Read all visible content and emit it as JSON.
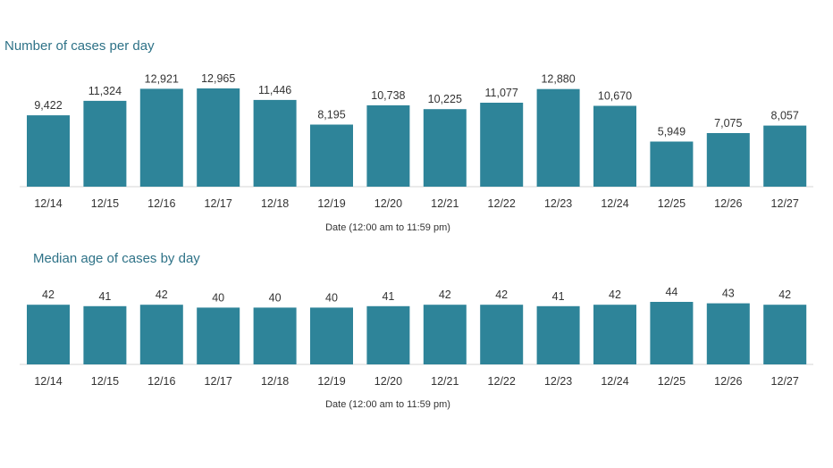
{
  "colors": {
    "bar": "#2e8499",
    "title": "#2e7287",
    "axis": "#d5d5d5",
    "text": "#333333"
  },
  "chart_data": [
    {
      "type": "bar",
      "title": "Number of cases per day",
      "xlabel": "Date (12:00 am to 11:59 pm)",
      "ylabel": "",
      "categories": [
        "12/14",
        "12/15",
        "12/16",
        "12/17",
        "12/18",
        "12/19",
        "12/20",
        "12/21",
        "12/22",
        "12/23",
        "12/24",
        "12/25",
        "12/26",
        "12/27"
      ],
      "values": [
        9422,
        11324,
        12921,
        12965,
        11446,
        8195,
        10738,
        10225,
        11077,
        12880,
        10670,
        5949,
        7075,
        8057
      ],
      "labels": [
        "9,422",
        "11,324",
        "12,921",
        "12,965",
        "11,446",
        "8,195",
        "10,738",
        "10,225",
        "11,077",
        "12,880",
        "10,670",
        "5,949",
        "7,075",
        "8,057"
      ],
      "ylim": [
        0,
        12965
      ],
      "grid": false,
      "legend": "none"
    },
    {
      "type": "bar",
      "title": "Median age of cases by day",
      "xlabel": "Date (12:00 am to 11:59 pm)",
      "ylabel": "",
      "categories": [
        "12/14",
        "12/15",
        "12/16",
        "12/17",
        "12/18",
        "12/19",
        "12/20",
        "12/21",
        "12/22",
        "12/23",
        "12/24",
        "12/25",
        "12/26",
        "12/27"
      ],
      "values": [
        42,
        41,
        42,
        40,
        40,
        40,
        41,
        42,
        42,
        41,
        42,
        44,
        43,
        42
      ],
      "labels": [
        "42",
        "41",
        "42",
        "40",
        "40",
        "40",
        "41",
        "42",
        "42",
        "41",
        "42",
        "44",
        "43",
        "42"
      ],
      "ylim": [
        0,
        44
      ],
      "grid": false,
      "legend": "none"
    }
  ]
}
